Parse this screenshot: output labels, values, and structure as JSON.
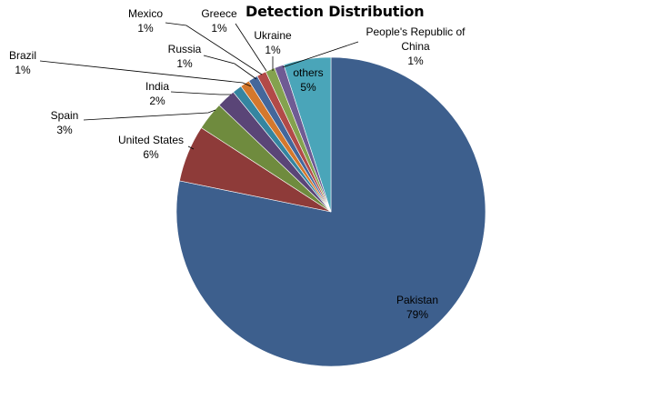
{
  "chart_data": {
    "type": "pie",
    "title": "Detection Distribution",
    "series": [
      {
        "values": [
          79,
          6,
          3,
          2,
          1,
          1,
          1,
          1,
          1,
          1,
          5
        ],
        "labels": [
          "79%",
          "6%",
          "3%",
          "2%",
          "1%",
          "1%",
          "1%",
          "1%",
          "1%",
          "1%",
          "5%"
        ]
      }
    ],
    "categories": [
      "Pakistan",
      "United States",
      "Spain",
      "India",
      "Brazil",
      "Russia",
      "Mexico",
      "Greece",
      "Ukraine",
      "People's Republic of China",
      "others"
    ],
    "colors": [
      "#3d5f8d",
      "#8e3b39",
      "#6f8b3e",
      "#5a4577",
      "#3585a0",
      "#d4782d",
      "#44679b",
      "#b24a48",
      "#84a24e",
      "#6f5b94",
      "#4aa5b9"
    ],
    "start_angle_deg": 0,
    "direction": "clockwise",
    "legend": "none",
    "data_labels": "outside-with-leader-lines"
  }
}
